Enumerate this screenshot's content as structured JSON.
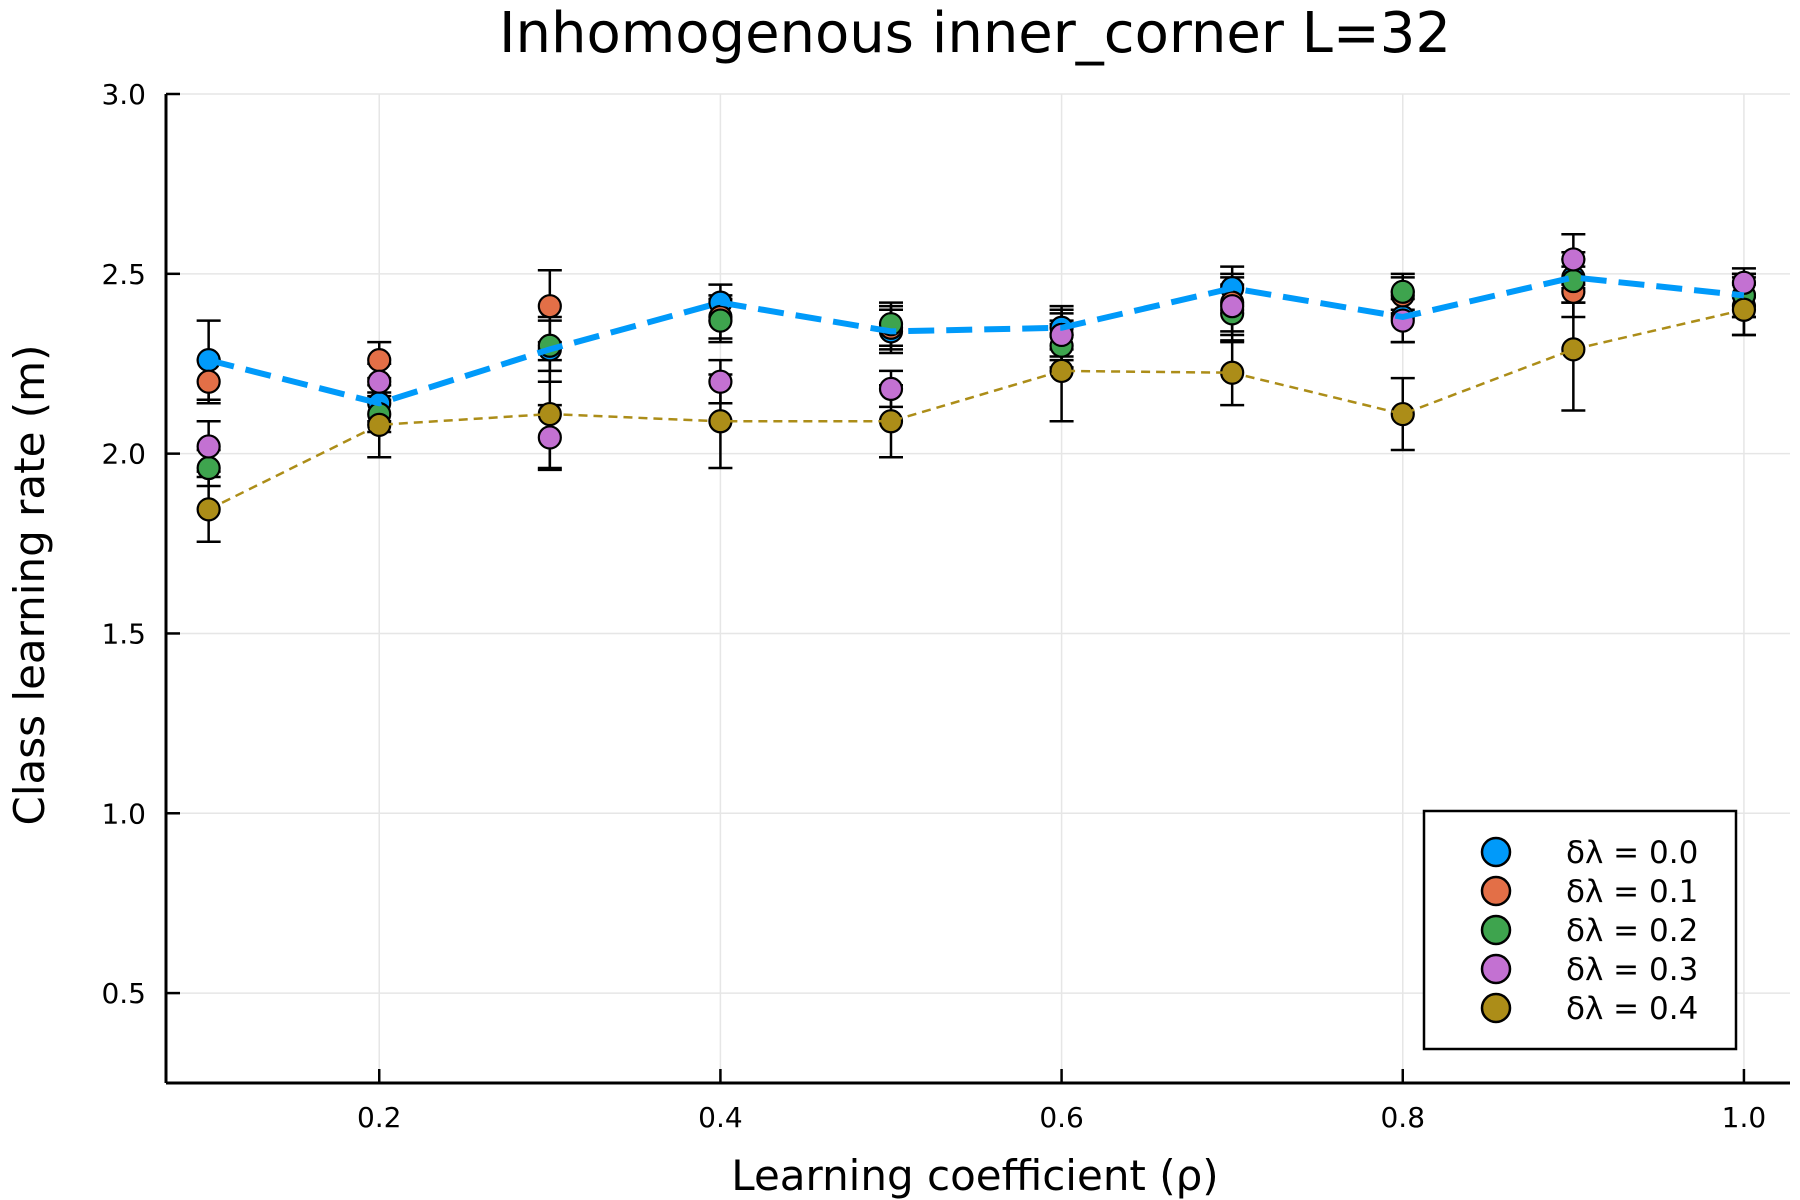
{
  "chart_data": {
    "type": "scatter",
    "title": "Inhomogenous inner_corner L=32",
    "xlabel": "Learning coefficient (ρ)",
    "ylabel": "Class learning rate (m)",
    "xlim": [
      0.075,
      1.027
    ],
    "ylim": [
      0.25,
      3.0
    ],
    "xticks": [
      0.2,
      0.4,
      0.6,
      0.8,
      1.0
    ],
    "xtick_labels": [
      "0.2",
      "0.4",
      "0.6",
      "0.8",
      "1.0"
    ],
    "yticks": [
      0.5,
      1.0,
      1.5,
      2.0,
      2.5,
      3.0
    ],
    "ytick_labels": [
      "0.5",
      "1.0",
      "1.5",
      "2.0",
      "2.5",
      "3.0"
    ],
    "grid": true,
    "legend_position": "bottom-right",
    "x": [
      0.1,
      0.2,
      0.3,
      0.4,
      0.5,
      0.6,
      0.7,
      0.8,
      0.9,
      1.0
    ],
    "series": [
      {
        "name": "δλ = 0.0",
        "color": "#009AFA",
        "line": "thick-dashed",
        "values": [
          2.26,
          2.14,
          2.29,
          2.42,
          2.34,
          2.35,
          2.46,
          2.38,
          2.49,
          2.44
        ],
        "errors": [
          0.11,
          0.05,
          0.09,
          0.05,
          0.06,
          0.06,
          0.06,
          0.07,
          0.07,
          0.06
        ]
      },
      {
        "name": "δλ = 0.1",
        "color": "#E36F47",
        "line": "none",
        "values": [
          2.2,
          2.26,
          2.41,
          2.38,
          2.35,
          2.33,
          2.42,
          2.44,
          2.45,
          2.41
        ],
        "errors": [
          0.06,
          0.05,
          0.1,
          0.06,
          0.06,
          0.07,
          0.08,
          0.05,
          0.07,
          0.08
        ]
      },
      {
        "name": "δλ = 0.2",
        "color": "#3EA44E",
        "line": "none",
        "values": [
          1.96,
          2.11,
          2.3,
          2.37,
          2.36,
          2.3,
          2.39,
          2.45,
          2.48,
          2.44
        ],
        "errors": [
          0.05,
          0.05,
          0.07,
          0.06,
          0.06,
          0.06,
          0.08,
          0.05,
          0.06,
          0.06
        ]
      },
      {
        "name": "δλ = 0.3",
        "color": "#C371D2",
        "line": "none",
        "values": [
          2.02,
          2.2,
          2.045,
          2.2,
          2.18,
          2.33,
          2.41,
          2.37,
          2.54,
          2.475
        ],
        "errors": [
          0.07,
          0.05,
          0.09,
          0.06,
          0.05,
          0.06,
          0.08,
          0.06,
          0.07,
          0.04
        ]
      },
      {
        "name": "δλ = 0.4",
        "color": "#AC8D18",
        "line": "thin-dashed",
        "values": [
          1.845,
          2.08,
          2.11,
          2.09,
          2.09,
          2.23,
          2.225,
          2.11,
          2.29,
          2.4
        ],
        "errors": [
          0.09,
          0.09,
          0.15,
          0.13,
          0.1,
          0.14,
          0.09,
          0.1,
          0.17,
          0.07
        ]
      }
    ]
  }
}
